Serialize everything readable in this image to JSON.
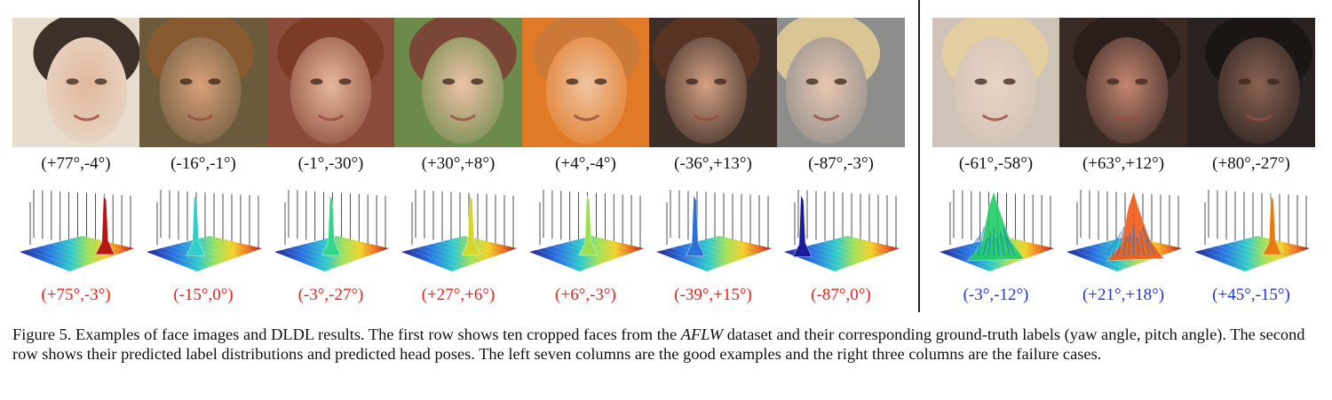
{
  "columns": [
    {
      "gt": "(+77°,-4°)",
      "pred": "(+75°,-3°)",
      "status": "good",
      "bg": "#e8dccd",
      "skin": "#e2b79c",
      "hair": "#2a1d16",
      "peak": "#b81616",
      "peak_pos": 0.78,
      "spread": "narrow"
    },
    {
      "gt": "(-16°,-1°)",
      "pred": "(-15°,0°)",
      "status": "good",
      "bg": "#6b5a3c",
      "skin": "#d9a07a",
      "hair": "#8a5a2c",
      "peak": "#2fd0c8",
      "peak_pos": 0.42,
      "spread": "narrow"
    },
    {
      "gt": "(-1°,-30°)",
      "pred": "(-3°,-27°)",
      "status": "good",
      "bg": "#8a4b3a",
      "skin": "#e7b79a",
      "hair": "#7a3a22",
      "peak": "#33d688",
      "peak_pos": 0.5,
      "spread": "narrow"
    },
    {
      "gt": "(+30°,+8°)",
      "pred": "(+27°,+6°)",
      "status": "good",
      "bg": "#6c8a4a",
      "skin": "#eec2a8",
      "hair": "#7c3e34",
      "peak": "#d6d62a",
      "peak_pos": 0.62,
      "spread": "narrow"
    },
    {
      "gt": "(+4°,-4°)",
      "pred": "(+6°,-3°)",
      "status": "good",
      "bg": "#e07a26",
      "skin": "#f0c4a2",
      "hair": "#c87a38",
      "peak": "#9be052",
      "peak_pos": 0.52,
      "spread": "narrow"
    },
    {
      "gt": "(-36°,+13°)",
      "pred": "(-39°,+15°)",
      "status": "good",
      "bg": "#3e2e28",
      "skin": "#d5a084",
      "hair": "#5a3424",
      "peak": "#2b72d8",
      "peak_pos": 0.32,
      "spread": "narrow"
    },
    {
      "gt": "(-87°,-3°)",
      "pred": "(-87°,0°)",
      "status": "good",
      "bg": "#8d8d8b",
      "skin": "#e8c6b0",
      "hair": "#e2cc96",
      "peak": "#1a1a9a",
      "peak_pos": 0.12,
      "spread": "narrow"
    },
    {
      "gt": "(-61°,-58°)",
      "pred": "(-3°,-12°)",
      "status": "fail",
      "bg": "#cfc2b6",
      "skin": "#ead3c2",
      "hair": "#e4cf9e",
      "peak": "#22cc66",
      "peak_pos": 0.48,
      "spread": "wide"
    },
    {
      "gt": "(+63°,+12°)",
      "pred": "(+21°,+18°)",
      "status": "fail",
      "bg": "#3a2a26",
      "skin": "#c48570",
      "hair": "#2a1c18",
      "peak": "#f05a18",
      "peak_pos": 0.6,
      "spread": "wide"
    },
    {
      "gt": "(+80°,-27°)",
      "pred": "(+45°,-15°)",
      "status": "fail",
      "bg": "#2a2220",
      "skin": "#8a6252",
      "hair": "#1a1412",
      "peak": "#e87c12",
      "peak_pos": 0.7,
      "spread": "narrow"
    }
  ],
  "caption": {
    "lead": "Figure 5.  Examples of face images and DLDL results. The first row shows ten cropped faces from the ",
    "dataset": "AFLW",
    "rest": " dataset and their corresponding ground-truth labels (yaw angle, pitch angle). The second row shows their predicted label distributions and predicted head poses. The left seven columns are the good examples and the right three columns are the failure cases."
  }
}
